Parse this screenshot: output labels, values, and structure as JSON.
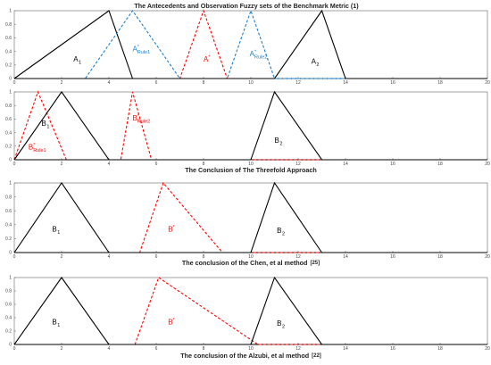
{
  "figure_title": "The Antecedents and Observation Fuzzy sets of the Benchmark Metric (1)",
  "colors": {
    "black": "#000000",
    "red": "#ff0000",
    "blue": "#1a7fc9",
    "frame": "#7a7a7a"
  },
  "chart_data": [
    {
      "type": "line",
      "title": "The Antecedents and Observation Fuzzy sets of the Benchmark Metric (1)",
      "xlim": [
        0,
        20
      ],
      "ylim": [
        0,
        1
      ],
      "xticks": [
        0,
        2,
        4,
        6,
        8,
        10,
        12,
        14,
        16,
        18,
        20
      ],
      "yticks": [
        0,
        0.2,
        0.4,
        0.6,
        0.8,
        1
      ],
      "series": [
        {
          "label": "A",
          "sub": "1",
          "sup": "",
          "color": "black",
          "dashed": false,
          "x": [
            0,
            4,
            5
          ],
          "y": [
            0,
            1,
            0
          ],
          "label_x": 2.5,
          "label_y": 0.25
        },
        {
          "label": "A",
          "sub": "Rule1",
          "sup": "*",
          "color": "blue",
          "dashed": true,
          "x": [
            3,
            5,
            7
          ],
          "y": [
            0,
            1,
            0
          ],
          "label_x": 5.0,
          "label_y": 0.4
        },
        {
          "label": "A",
          "sub": "",
          "sup": "*",
          "color": "red",
          "dashed": true,
          "x": [
            7,
            8,
            9
          ],
          "y": [
            0,
            1,
            0
          ],
          "label_x": 8.0,
          "label_y": 0.25
        },
        {
          "label": "A",
          "sub": "Rule2",
          "sup": "*",
          "color": "blue",
          "dashed": true,
          "x": [
            9,
            10,
            11
          ],
          "y": [
            0,
            1,
            0
          ],
          "label_x": 9.95,
          "label_y": 0.33
        },
        {
          "label": "A",
          "sub": "2",
          "sup": "",
          "color": "black",
          "dashed": false,
          "x": [
            11,
            13,
            14
          ],
          "y": [
            0,
            1,
            0
          ],
          "label_x": 12.55,
          "label_y": 0.22
        }
      ]
    },
    {
      "type": "line",
      "title": "The Conclusion of The Threefold Approach",
      "xlim": [
        0,
        20
      ],
      "ylim": [
        0,
        1
      ],
      "xticks": [
        0,
        2,
        4,
        6,
        8,
        10,
        12,
        14,
        16,
        18,
        20
      ],
      "yticks": [
        0,
        0.2,
        0.4,
        0.6,
        0.8,
        1
      ],
      "series": [
        {
          "label": "B",
          "sub": "Rule1",
          "sup": "*",
          "color": "red",
          "dashed": true,
          "x": [
            0,
            1,
            2.2
          ],
          "y": [
            0,
            1,
            0
          ],
          "label_x": 0.6,
          "label_y": 0.15
        },
        {
          "label": "B",
          "sub": "1",
          "sup": "",
          "color": "black",
          "dashed": false,
          "x": [
            0,
            2,
            4
          ],
          "y": [
            0,
            1,
            0
          ],
          "label_x": 1.15,
          "label_y": 0.5
        },
        {
          "label": "B",
          "sub": "Rule2",
          "sup": "*",
          "color": "red",
          "dashed": true,
          "x": [
            4.5,
            5,
            5.8
          ],
          "y": [
            0,
            1,
            0
          ],
          "label_x": 5.0,
          "label_y": 0.58
        },
        {
          "label": "B",
          "sub": "2",
          "sup": "",
          "color": "black",
          "dashed": false,
          "x": [
            10,
            11,
            13
          ],
          "y": [
            0,
            1,
            0
          ],
          "label_x": 11.0,
          "label_y": 0.25
        }
      ]
    },
    {
      "type": "line",
      "title": "The conclusion of the Chen, et al method",
      "title_ref": "[25]",
      "xlim": [
        0,
        20
      ],
      "ylim": [
        0,
        1
      ],
      "xticks": [
        0,
        2,
        4,
        6,
        8,
        10,
        12,
        14,
        16,
        18,
        20
      ],
      "yticks": [
        0,
        0.2,
        0.4,
        0.6,
        0.8,
        1
      ],
      "series": [
        {
          "label": "B",
          "sub": "1",
          "sup": "",
          "color": "black",
          "dashed": false,
          "x": [
            0,
            2,
            4
          ],
          "y": [
            0,
            1,
            0
          ],
          "label_x": 1.6,
          "label_y": 0.3
        },
        {
          "label": "B",
          "sub": "",
          "sup": "*",
          "color": "red",
          "dashed": true,
          "x": [
            5.3,
            6.3,
            8.8
          ],
          "y": [
            0,
            1,
            0
          ],
          "label_x": 6.5,
          "label_y": 0.3
        },
        {
          "label": "B",
          "sub": "2",
          "sup": "",
          "color": "black",
          "dashed": false,
          "x": [
            10,
            11,
            13
          ],
          "y": [
            0,
            1,
            0
          ],
          "label_x": 11.1,
          "label_y": 0.28
        }
      ]
    },
    {
      "type": "line",
      "title": "The conclusion of the Alzubi, et al method",
      "title_ref": "[22]",
      "xlim": [
        0,
        20
      ],
      "ylim": [
        0,
        1
      ],
      "xticks": [
        0,
        2,
        4,
        6,
        8,
        10,
        12,
        14,
        16,
        18,
        20
      ],
      "yticks": [
        0,
        0.2,
        0.4,
        0.6,
        0.8,
        1
      ],
      "series": [
        {
          "label": "B",
          "sub": "1",
          "sup": "",
          "color": "black",
          "dashed": false,
          "x": [
            0,
            2,
            4
          ],
          "y": [
            0,
            1,
            0
          ],
          "label_x": 1.6,
          "label_y": 0.3
        },
        {
          "label": "B",
          "sub": "",
          "sup": "*",
          "color": "red",
          "dashed": true,
          "x": [
            5.1,
            6.1,
            10.3
          ],
          "y": [
            0,
            1,
            0
          ],
          "label_x": 6.5,
          "label_y": 0.3
        },
        {
          "label": "B",
          "sub": "2",
          "sup": "",
          "color": "black",
          "dashed": false,
          "x": [
            10,
            11,
            13
          ],
          "y": [
            0,
            1,
            0
          ],
          "label_x": 11.1,
          "label_y": 0.28
        }
      ]
    }
  ]
}
